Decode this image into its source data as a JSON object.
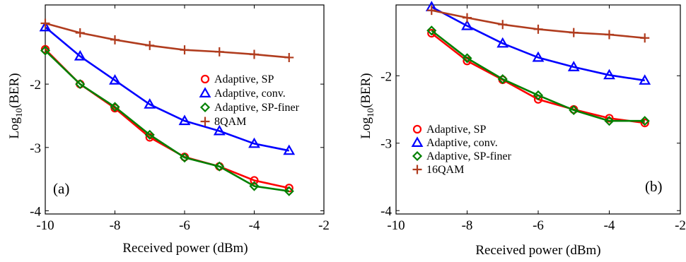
{
  "chart_data": [
    {
      "type": "line",
      "panel_label": "(a)",
      "xlabel": "Received power (dBm)",
      "ylabel": "Log10(BER)",
      "xlim": [
        -10,
        -2
      ],
      "ylim": [
        -4.05,
        -0.75
      ],
      "xticks": [
        -10,
        -8,
        -6,
        -4,
        -2
      ],
      "yticks": [
        -2,
        -3,
        -4
      ],
      "x": [
        -10,
        -9,
        -8,
        -7,
        -6,
        -5,
        -4,
        -3
      ],
      "legend_position": "right-middle",
      "series": [
        {
          "name": "Adaptive, SP",
          "color": "#ff0000",
          "marker": "circle",
          "values": [
            -1.45,
            -2.0,
            -2.38,
            -2.84,
            -3.15,
            -3.3,
            -3.52,
            -3.64
          ]
        },
        {
          "name": "Adaptive, conv.",
          "color": "#0000ff",
          "marker": "triangle",
          "values": [
            -1.1,
            -1.56,
            -1.94,
            -2.32,
            -2.58,
            -2.74,
            -2.94,
            -3.05
          ]
        },
        {
          "name": "Adaptive, SP-finer",
          "color": "#008000",
          "marker": "diamond",
          "values": [
            -1.47,
            -2.0,
            -2.36,
            -2.8,
            -3.16,
            -3.3,
            -3.61,
            -3.69
          ]
        },
        {
          "name": "8QAM",
          "color": "#b03c1e",
          "marker": "plus",
          "values": [
            -1.04,
            -1.19,
            -1.3,
            -1.39,
            -1.46,
            -1.49,
            -1.53,
            -1.58
          ]
        }
      ]
    },
    {
      "type": "line",
      "panel_label": "(b)",
      "xlabel": "Received power (dBm)",
      "ylabel": "Log10(BER)",
      "xlim": [
        -10,
        -2
      ],
      "ylim": [
        -4.05,
        -0.95
      ],
      "xticks": [
        -10,
        -8,
        -6,
        -4,
        -2
      ],
      "yticks": [
        -2,
        -3,
        -4
      ],
      "x": [
        -9,
        -8,
        -7,
        -6,
        -5,
        -4,
        -3
      ],
      "legend_position": "bottom-left",
      "series": [
        {
          "name": "Adaptive, SP",
          "color": "#ff0000",
          "marker": "circle",
          "values": [
            -1.37,
            -1.78,
            -2.06,
            -2.35,
            -2.5,
            -2.63,
            -2.7
          ]
        },
        {
          "name": "Adaptive, conv.",
          "color": "#0000ff",
          "marker": "triangle",
          "values": [
            -0.98,
            -1.26,
            -1.52,
            -1.73,
            -1.87,
            -1.99,
            -2.07
          ]
        },
        {
          "name": "Adaptive, SP-finer",
          "color": "#008000",
          "marker": "diamond",
          "values": [
            -1.33,
            -1.74,
            -2.05,
            -2.29,
            -2.51,
            -2.67,
            -2.67
          ]
        },
        {
          "name": "16QAM",
          "color": "#b03c1e",
          "marker": "plus",
          "values": [
            -1.03,
            -1.14,
            -1.24,
            -1.31,
            -1.36,
            -1.39,
            -1.44
          ]
        }
      ]
    }
  ]
}
